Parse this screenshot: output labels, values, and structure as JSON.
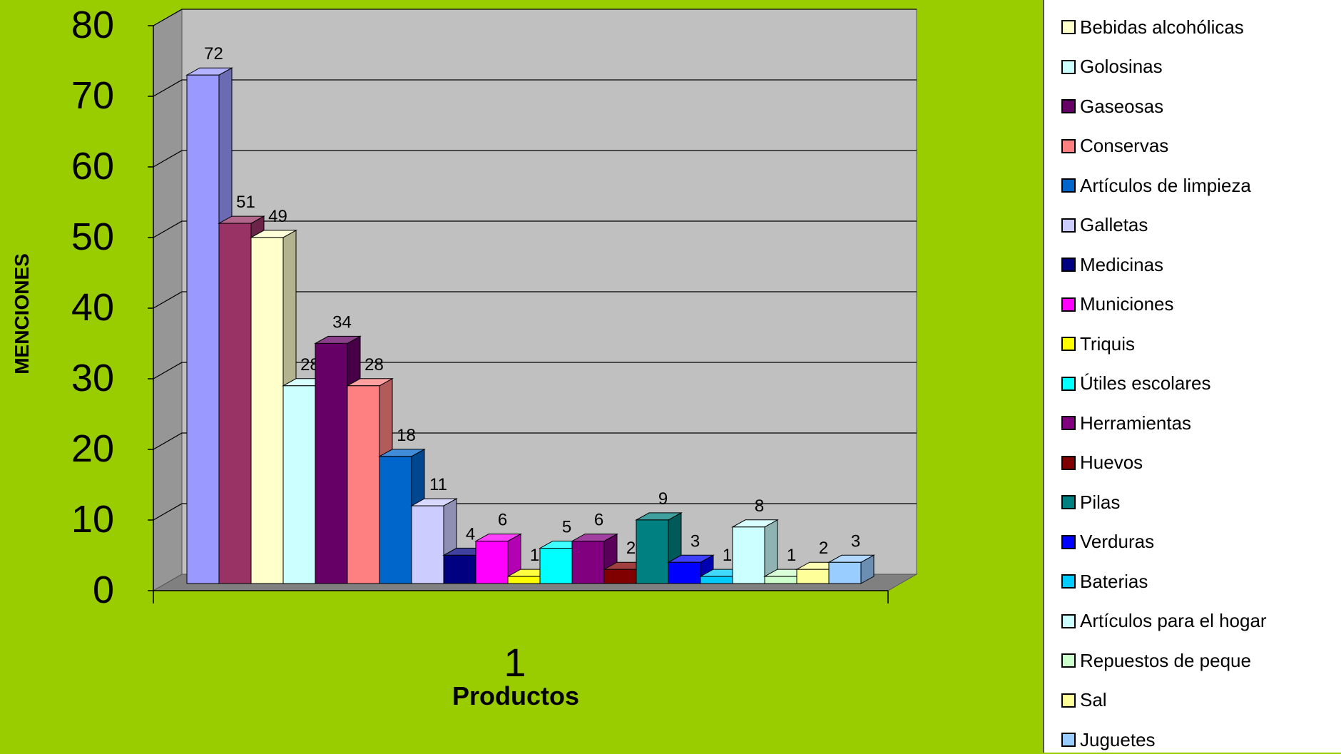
{
  "chart_data": {
    "type": "bar",
    "x_tick_label": "1",
    "xlabel": "Productos",
    "ylabel": "MENCIONES",
    "ylim": [
      0,
      80
    ],
    "yticks": [
      "0",
      "10",
      "20",
      "30",
      "40",
      "50",
      "60",
      "70",
      "80"
    ],
    "grid": true,
    "legend_position": "right",
    "series": [
      {
        "name": "Bebidas alcohólicas",
        "value": 72,
        "color": "#9999FF"
      },
      {
        "name": "Golosinas",
        "value": 51,
        "color": "#993366"
      },
      {
        "name": "Gaseosas",
        "value": 49,
        "color": "#FFFFCC"
      },
      {
        "name": "Conservas",
        "value": 28,
        "color": "#CCFFFF"
      },
      {
        "name": "Artículos de limpieza",
        "value": 34,
        "color": "#660066"
      },
      {
        "name": "Galletas",
        "value": 28,
        "color": "#FF8080"
      },
      {
        "name": "Medicinas",
        "value": 18,
        "color": "#0066CC"
      },
      {
        "name": "Municiones",
        "value": 11,
        "color": "#CCCCFF"
      },
      {
        "name": "Triquis",
        "value": 4,
        "color": "#000080"
      },
      {
        "name": "Útiles escolares",
        "value": 6,
        "color": "#FF00FF"
      },
      {
        "name": "Herramientas",
        "value": 1,
        "color": "#FFFF00"
      },
      {
        "name": "Huevos",
        "value": 5,
        "color": "#00FFFF"
      },
      {
        "name": "Pilas",
        "value": 6,
        "color": "#800080"
      },
      {
        "name": "Verduras",
        "value": 2,
        "color": "#800000"
      },
      {
        "name": "Baterias",
        "value": 9,
        "color": "#008080"
      },
      {
        "name": "Artículos para el hogar",
        "value": 3,
        "color": "#0000FF"
      },
      {
        "name": "Repuestos de peque",
        "value": 1,
        "color": "#00CCFF"
      },
      {
        "name": "Sal",
        "value": 8,
        "color": "#CCFFFF"
      },
      {
        "name": "Juguetes",
        "value": 1,
        "color": "#CCFFCC"
      },
      {
        "name": "",
        "value": 2,
        "color": "#FFFF99"
      },
      {
        "name": "",
        "value": 3,
        "color": "#99CCFF"
      }
    ],
    "data_labels": [
      "72",
      "51",
      "49",
      "28",
      "34",
      "28",
      "18",
      "11",
      "4",
      "6",
      "1",
      "5",
      "6",
      "2",
      "9",
      "3",
      "1",
      "8",
      "1",
      "2",
      "3"
    ]
  },
  "legend": {
    "items": [
      {
        "label": "Bebidas alcohólicas",
        "color": "#FFFFCC"
      },
      {
        "label": "Golosinas",
        "color": "#CCFFFF"
      },
      {
        "label": "Gaseosas",
        "color": "#660066"
      },
      {
        "label": "Conservas",
        "color": "#FF8080"
      },
      {
        "label": "Artículos de limpieza",
        "color": "#0066CC"
      },
      {
        "label": "Galletas",
        "color": "#CCCCFF"
      },
      {
        "label": "Medicinas",
        "color": "#000080"
      },
      {
        "label": "Municiones",
        "color": "#FF00FF"
      },
      {
        "label": "Triquis",
        "color": "#FFFF00"
      },
      {
        "label": "Útiles escolares",
        "color": "#00FFFF"
      },
      {
        "label": "Herramientas",
        "color": "#800080"
      },
      {
        "label": "Huevos",
        "color": "#800000"
      },
      {
        "label": "Pilas",
        "color": "#008080"
      },
      {
        "label": "Verduras",
        "color": "#0000FF"
      },
      {
        "label": "Baterias",
        "color": "#00CCFF"
      },
      {
        "label": "Artículos para el hogar",
        "color": "#CCFFFF"
      },
      {
        "label": "Repuestos de peque",
        "color": "#CCFFCC"
      },
      {
        "label": "Sal",
        "color": "#FFFF99"
      },
      {
        "label": "Juguetes",
        "color": "#99CCFF"
      }
    ]
  },
  "colors": {
    "background": "#9ACD00",
    "plot_back": "#C0C0C0",
    "plot_side": "#969696",
    "grid": "#000000"
  }
}
